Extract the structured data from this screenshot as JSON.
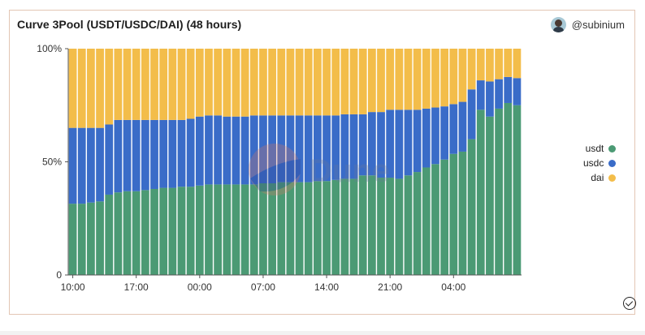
{
  "header": {
    "title": "Curve 3Pool (USDT/USDC/DAI) (48 hours)",
    "author": "@subinium"
  },
  "watermark": "Dune",
  "colors": {
    "usdt": "#4b9a74",
    "usdc": "#3a6cc8",
    "dai": "#f3bd4a"
  },
  "chart_data": {
    "type": "bar",
    "stacked": true,
    "normalized": true,
    "title": "Curve 3Pool (USDT/USDC/DAI) (48 hours)",
    "x_tick_labels": [
      "10:00",
      "17:00",
      "00:00",
      "07:00",
      "14:00",
      "21:00",
      "04:00"
    ],
    "x_tick_indices": [
      0,
      7,
      14,
      21,
      28,
      35,
      42
    ],
    "y_tick_labels": [
      "0",
      "50%",
      "100%"
    ],
    "ylim": [
      0,
      1
    ],
    "legend_position": "right",
    "series": [
      {
        "name": "usdt",
        "values": [
          0.315,
          0.315,
          0.32,
          0.325,
          0.355,
          0.365,
          0.37,
          0.37,
          0.375,
          0.38,
          0.385,
          0.385,
          0.39,
          0.39,
          0.395,
          0.4,
          0.4,
          0.4,
          0.4,
          0.4,
          0.4,
          0.405,
          0.405,
          0.41,
          0.41,
          0.41,
          0.41,
          0.415,
          0.415,
          0.42,
          0.425,
          0.425,
          0.44,
          0.44,
          0.43,
          0.43,
          0.425,
          0.44,
          0.455,
          0.475,
          0.49,
          0.51,
          0.535,
          0.545,
          0.6,
          0.73,
          0.7,
          0.735,
          0.76,
          0.75
        ]
      },
      {
        "name": "usdc",
        "values": [
          0.335,
          0.335,
          0.33,
          0.325,
          0.31,
          0.32,
          0.315,
          0.315,
          0.31,
          0.305,
          0.3,
          0.3,
          0.295,
          0.3,
          0.305,
          0.305,
          0.305,
          0.3,
          0.3,
          0.3,
          0.305,
          0.3,
          0.3,
          0.295,
          0.295,
          0.295,
          0.295,
          0.29,
          0.29,
          0.285,
          0.285,
          0.285,
          0.27,
          0.28,
          0.29,
          0.3,
          0.305,
          0.29,
          0.275,
          0.26,
          0.25,
          0.235,
          0.22,
          0.22,
          0.22,
          0.13,
          0.155,
          0.13,
          0.115,
          0.12
        ]
      },
      {
        "name": "dai",
        "values": [
          0.35,
          0.35,
          0.35,
          0.35,
          0.335,
          0.315,
          0.315,
          0.315,
          0.315,
          0.315,
          0.315,
          0.315,
          0.315,
          0.31,
          0.3,
          0.295,
          0.295,
          0.3,
          0.3,
          0.3,
          0.295,
          0.295,
          0.295,
          0.295,
          0.295,
          0.295,
          0.295,
          0.295,
          0.295,
          0.295,
          0.29,
          0.29,
          0.29,
          0.28,
          0.28,
          0.27,
          0.27,
          0.27,
          0.27,
          0.265,
          0.26,
          0.255,
          0.245,
          0.235,
          0.18,
          0.14,
          0.145,
          0.135,
          0.125,
          0.13
        ]
      }
    ]
  }
}
